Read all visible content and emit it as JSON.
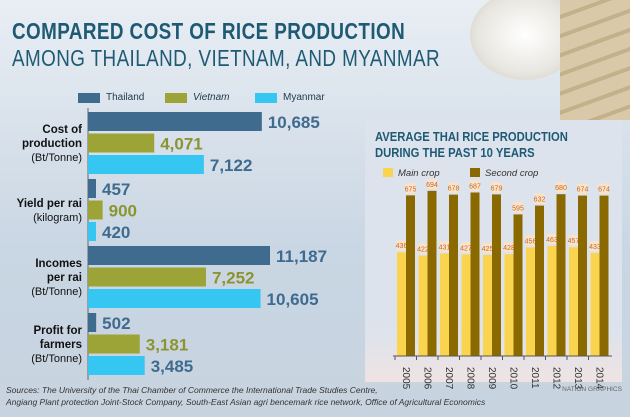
{
  "title_line1": "COMPARED COST OF RICE PRODUCTION",
  "title_line2": "AMONG THAILAND, VIETNAM, AND MYANMAR",
  "chart_data": [
    {
      "type": "bar",
      "orientation": "horizontal",
      "categories": [
        {
          "name": "Cost of production",
          "unit": "(Bt/Tonne)"
        },
        {
          "name": "Yield per rai",
          "unit": "(kilogram)"
        },
        {
          "name": "Incomes per rai",
          "unit": "(Bt/Tonne)"
        },
        {
          "name": "Profit for farmers",
          "unit": "(Bt/Tonne)"
        }
      ],
      "category_labels": [
        [
          "Cost of",
          "production",
          "(Bt/Tonne)"
        ],
        [
          "Yield per rai",
          "(kilogram)"
        ],
        [
          "Incomes",
          "per rai",
          "(Bt/Tonne)"
        ],
        [
          "Profit for",
          "farmers",
          "(Bt/Tonne)"
        ]
      ],
      "series": [
        {
          "name": "Thailand",
          "color": "#3f6b8f",
          "values": [
            10685,
            457,
            11187,
            502
          ],
          "labels": [
            "10,685",
            "457",
            "11,187",
            "502"
          ],
          "label_color": "#3f6b8f"
        },
        {
          "name": "Vietnam",
          "color": "#9ca337",
          "values": [
            4071,
            900,
            7252,
            3181
          ],
          "labels": [
            "4,071",
            "900",
            "7,252",
            "3,181"
          ],
          "label_color": "#8c9430"
        },
        {
          "name": "Myanmar",
          "color": "#35c6f1",
          "values": [
            7122,
            420,
            10605,
            3485
          ],
          "labels": [
            "7,122",
            "420",
            "10,605",
            "3,485"
          ],
          "label_color": "#3f6b8f"
        }
      ],
      "legend": "top"
    },
    {
      "type": "bar",
      "title_line1": "AVERAGE THAI RICE PRODUCTION",
      "title_line2": "DURING THE PAST 10 YEARS",
      "categories": [
        "2005",
        "2006",
        "2007",
        "2008",
        "2009",
        "2010",
        "2011",
        "2012",
        "2013",
        "2014"
      ],
      "series": [
        {
          "name": "Main crop",
          "color": "#fbd44f",
          "values": [
            436,
            422,
            431,
            427,
            425,
            428,
            456,
            463,
            457,
            433
          ]
        },
        {
          "name": "Second crop",
          "color": "#8a6a00",
          "values": [
            675,
            694,
            678,
            687,
            679,
            595,
            632,
            680,
            674,
            674
          ]
        }
      ],
      "legend": "top"
    }
  ],
  "sources_line1": "Sources: The University of the Thai Chamber of Commerce the International Trade Studies Centre,",
  "sources_line2": "Angiang Plant protection Joint-Stock Company, South-East Asian agri bencemark rice network, Office of Agricultural Economics",
  "credit": "NATION GRAPHICS"
}
